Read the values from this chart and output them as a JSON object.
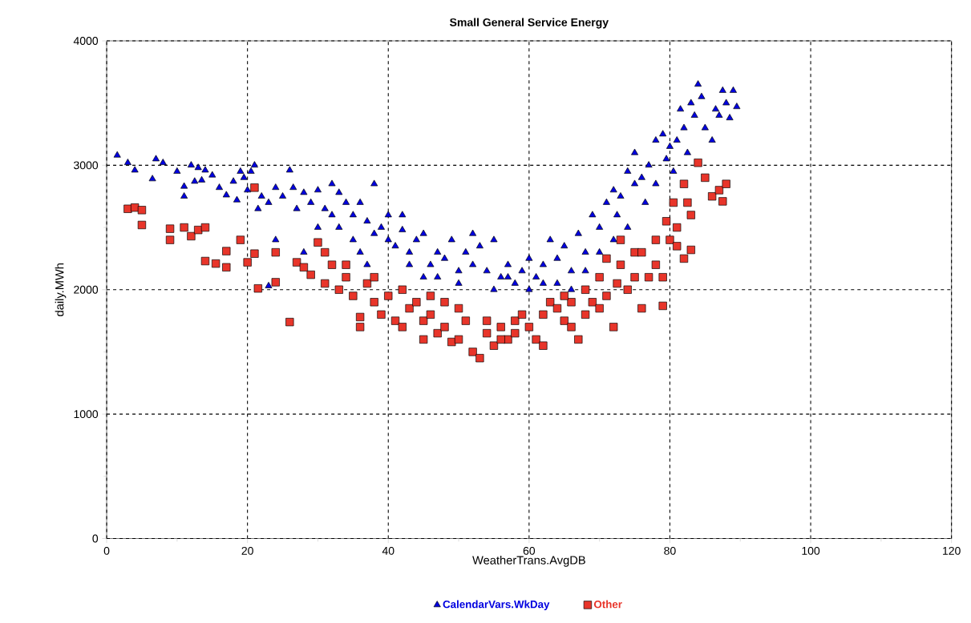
{
  "chart_data": {
    "type": "scatter",
    "title": "Small General Service Energy",
    "xlabel": "WeatherTrans.AvgDB",
    "ylabel": "daily.MWh",
    "xlim": [
      0,
      120
    ],
    "xticks": [
      0,
      20,
      40,
      60,
      80,
      100,
      120
    ],
    "ylim": [
      0,
      4000
    ],
    "yticks": [
      0,
      1000,
      2000,
      3000,
      4000
    ],
    "grid": true,
    "legend": "bottom",
    "series": [
      {
        "name": "CalendarVars.WkDay",
        "color": "#0000e0",
        "marker": "triangle",
        "x": [
          1.5,
          3,
          4,
          7,
          8,
          6.5,
          10,
          11,
          12,
          11,
          13,
          14,
          13.5,
          15,
          12.5,
          16,
          17,
          18,
          19,
          19.5,
          18.5,
          20.5,
          21,
          20,
          22,
          21.5,
          23,
          24,
          25,
          26,
          26.5,
          27,
          28,
          29,
          30,
          31,
          32,
          32,
          33,
          34,
          35,
          36,
          37,
          38,
          38,
          39,
          40,
          41,
          42,
          42,
          43,
          44,
          45,
          46,
          47,
          48,
          49,
          50,
          51,
          52,
          53,
          54,
          55,
          56,
          57,
          58,
          59,
          60,
          61,
          62,
          63,
          64,
          65,
          66,
          67,
          68,
          69,
          70,
          71,
          72,
          72.5,
          73,
          74,
          75,
          75,
          76,
          76.5,
          77,
          78,
          78,
          79,
          79.5,
          80,
          80.5,
          81,
          81.5,
          82,
          82.5,
          83,
          83.5,
          84,
          84.5,
          85,
          86,
          86.5,
          87,
          87.5,
          88,
          88.5,
          89,
          89.5,
          24,
          23,
          28,
          33,
          35,
          37,
          40,
          45,
          50,
          55,
          60,
          64,
          66,
          68,
          70,
          72,
          74,
          47,
          52,
          57,
          62,
          30,
          36,
          43
        ],
        "values": [
          3080,
          3020,
          2960,
          3050,
          3020,
          2890,
          2950,
          2830,
          3000,
          2750,
          2980,
          2960,
          2880,
          2920,
          2870,
          2820,
          2760,
          2870,
          2950,
          2900,
          2720,
          2950,
          3000,
          2800,
          2750,
          2650,
          2700,
          2820,
          2750,
          2960,
          2820,
          2650,
          2780,
          2700,
          2800,
          2650,
          2850,
          2600,
          2780,
          2700,
          2600,
          2700,
          2550,
          2850,
          2450,
          2500,
          2400,
          2350,
          2600,
          2480,
          2300,
          2400,
          2450,
          2200,
          2300,
          2250,
          2400,
          2150,
          2300,
          2200,
          2350,
          2150,
          2400,
          2100,
          2200,
          2050,
          2150,
          2250,
          2100,
          2200,
          2400,
          2250,
          2350,
          2150,
          2450,
          2300,
          2600,
          2500,
          2700,
          2800,
          2600,
          2750,
          2950,
          3100,
          2850,
          2900,
          2700,
          3000,
          3200,
          2850,
          3250,
          3050,
          3150,
          2950,
          3200,
          3450,
          3300,
          3100,
          3500,
          3400,
          3650,
          3550,
          3300,
          3200,
          3450,
          3400,
          3600,
          3500,
          3380,
          3600,
          3470,
          2400,
          2030,
          2300,
          2500,
          2400,
          2200,
          2600,
          2100,
          2050,
          2000,
          2000,
          2050,
          2000,
          2150,
          2300,
          2400,
          2500,
          2100,
          2450,
          2100,
          2050,
          2500,
          2300,
          2200
        ]
      },
      {
        "name": "Other",
        "color": "#e8352a",
        "marker": "square",
        "x": [
          3,
          4,
          5,
          5,
          9,
          9,
          11,
          12,
          13,
          14,
          14,
          15.5,
          17,
          17,
          19,
          20,
          21,
          21,
          21.5,
          24,
          24,
          26,
          27,
          28,
          29,
          30,
          31,
          32,
          33,
          34,
          35,
          36,
          36,
          37,
          38,
          39,
          40,
          41,
          42,
          43,
          44,
          45,
          46,
          47,
          48,
          49,
          50,
          51,
          52,
          53,
          54,
          55,
          56,
          57,
          58,
          59,
          60,
          61,
          62,
          63,
          64,
          65,
          66,
          67,
          68,
          69,
          70,
          71,
          72,
          72.5,
          73,
          74,
          75,
          76,
          77,
          78,
          79,
          79.5,
          80,
          80.5,
          81,
          82,
          82.5,
          83,
          84,
          85,
          86,
          87,
          87.5,
          88,
          82,
          83,
          81,
          78,
          75,
          70,
          66,
          62,
          58,
          54,
          50,
          46,
          42,
          38,
          34,
          31,
          45,
          48,
          56,
          65,
          68,
          71,
          73,
          76,
          79
        ],
        "values": [
          2650,
          2660,
          2640,
          2520,
          2490,
          2400,
          2500,
          2430,
          2480,
          2230,
          2500,
          2210,
          2310,
          2180,
          2400,
          2220,
          2290,
          2820,
          2010,
          2060,
          2300,
          1740,
          2220,
          2180,
          2120,
          2380,
          2050,
          2200,
          2000,
          2100,
          1950,
          1780,
          1700,
          2050,
          1900,
          1800,
          1950,
          1750,
          1700,
          1850,
          1900,
          1750,
          1800,
          1650,
          1700,
          1580,
          1600,
          1750,
          1500,
          1450,
          1650,
          1550,
          1700,
          1600,
          1750,
          1800,
          1700,
          1600,
          1550,
          1900,
          1850,
          1750,
          1700,
          1600,
          1800,
          1900,
          1850,
          1950,
          1700,
          2050,
          2200,
          2000,
          2300,
          1850,
          2100,
          2400,
          1870,
          2550,
          2400,
          2700,
          2350,
          2250,
          2700,
          2600,
          3020,
          2900,
          2750,
          2800,
          2710,
          2850,
          2850,
          2320,
          2500,
          2200,
          2100,
          2100,
          1900,
          1800,
          1650,
          1750,
          1850,
          1950,
          2000,
          2100,
          2200,
          2300,
          1600,
          1900,
          1600,
          1950,
          2000,
          2250,
          2400,
          2300,
          2100
        ]
      }
    ]
  }
}
